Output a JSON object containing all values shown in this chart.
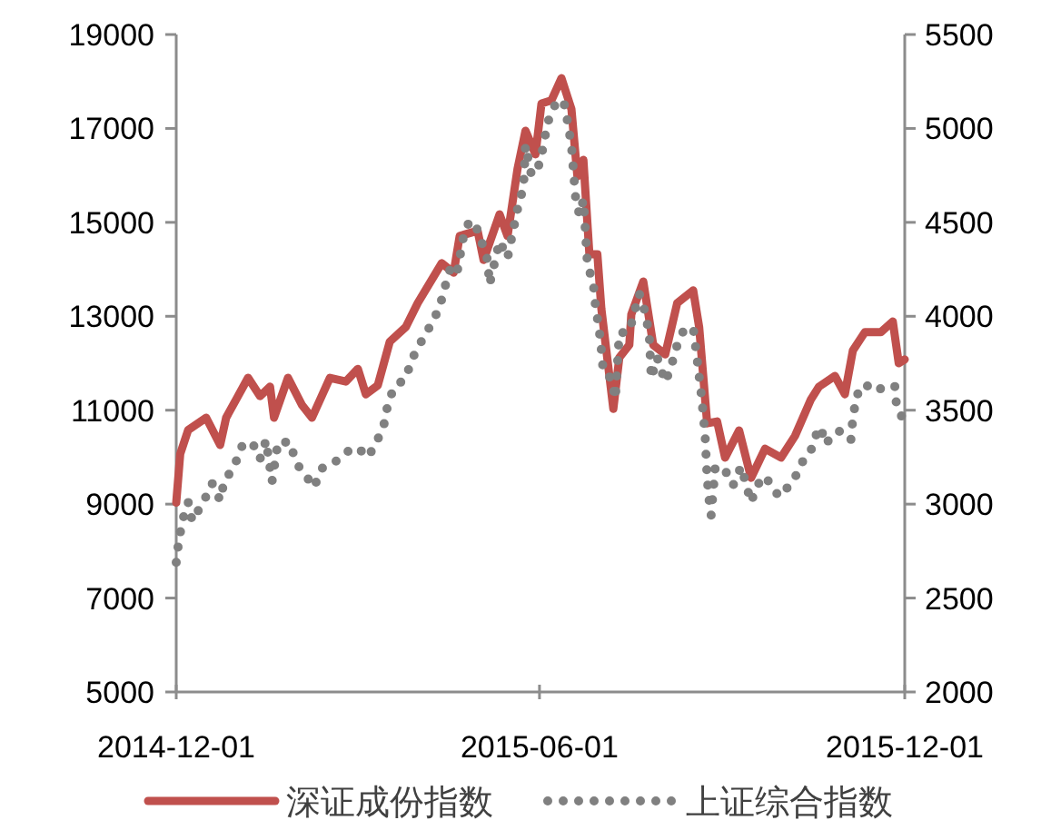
{
  "chart_data": {
    "type": "line",
    "xlim": [
      "2014-12-01",
      "2015-12-01"
    ],
    "xticks": [
      "2014-12-01",
      "2015-06-01",
      "2015-12-01"
    ],
    "ylim": [
      5000,
      19000
    ],
    "yticks": [
      5000,
      7000,
      9000,
      11000,
      13000,
      15000,
      17000,
      19000
    ],
    "y2lim": [
      2000,
      5500
    ],
    "y2ticks": [
      2000,
      2500,
      3000,
      3500,
      4000,
      4500,
      5000,
      5500
    ],
    "legend": "bottom",
    "grid": false,
    "series": [
      {
        "name": "深证成份指数",
        "color": "#c0504d",
        "line_style": "solid",
        "x": [
          "2014-12-01",
          "2014-12-03",
          "2014-12-07",
          "2014-12-16",
          "2014-12-23",
          "2014-12-26",
          "2015-01-06",
          "2015-01-12",
          "2015-01-17",
          "2015-01-19",
          "2015-01-26",
          "2015-02-02",
          "2015-02-07",
          "2015-02-16",
          "2015-02-24",
          "2015-03-02",
          "2015-03-06",
          "2015-03-12",
          "2015-03-18",
          "2015-03-26",
          "2015-04-01",
          "2015-04-13",
          "2015-04-19",
          "2015-04-22",
          "2015-05-01",
          "2015-05-04",
          "2015-05-12",
          "2015-05-16",
          "2015-05-21",
          "2015-05-25",
          "2015-05-30",
          "2015-06-02",
          "2015-06-07",
          "2015-06-12",
          "2015-06-17",
          "2015-06-20",
          "2015-06-23",
          "2015-06-26",
          "2015-06-30",
          "2015-07-02",
          "2015-07-08",
          "2015-07-11",
          "2015-07-16",
          "2015-07-17",
          "2015-07-23",
          "2015-07-28",
          "2015-08-03",
          "2015-08-09",
          "2015-08-17",
          "2015-08-20",
          "2015-08-24",
          "2015-08-29",
          "2015-09-02",
          "2015-09-09",
          "2015-09-15",
          "2015-09-22",
          "2015-09-30",
          "2015-10-07",
          "2015-10-15",
          "2015-10-19",
          "2015-10-27",
          "2015-11-01",
          "2015-11-05",
          "2015-11-11",
          "2015-11-19",
          "2015-11-25",
          "2015-11-28",
          "2015-12-01"
        ],
        "values": [
          9030,
          10070,
          10580,
          10840,
          10260,
          10840,
          11690,
          11300,
          11500,
          10840,
          11690,
          11110,
          10840,
          11690,
          11610,
          11880,
          11340,
          11530,
          12460,
          12770,
          13280,
          14130,
          13930,
          14710,
          14820,
          14200,
          15170,
          14710,
          16140,
          16950,
          16450,
          17530,
          17600,
          18070,
          17410,
          15980,
          16330,
          14320,
          14320,
          13160,
          11030,
          12120,
          12390,
          13040,
          13740,
          12390,
          12190,
          13280,
          13550,
          12770,
          10720,
          10760,
          9990,
          10570,
          9560,
          10180,
          9990,
          10450,
          11230,
          11500,
          11730,
          11340,
          12270,
          12660,
          12660,
          12890,
          12000,
          12080
        ]
      },
      {
        "name": "上证综合指数",
        "color": "#808080",
        "line_style": "dotted",
        "axis": "y2",
        "x": [
          "2014-12-01",
          "2014-12-02",
          "2014-12-04",
          "2014-12-07",
          "2014-12-09",
          "2014-12-15",
          "2014-12-19",
          "2014-12-23",
          "2014-12-25",
          "2014-12-30",
          "2015-01-03",
          "2015-01-08",
          "2015-01-12",
          "2015-01-15",
          "2015-01-18",
          "2015-01-21",
          "2015-01-27",
          "2015-01-30",
          "2015-02-04",
          "2015-02-08",
          "2015-02-12",
          "2015-02-21",
          "2015-02-26",
          "2015-03-02",
          "2015-03-07",
          "2015-03-11",
          "2015-03-15",
          "2015-03-17",
          "2015-03-20",
          "2015-03-26",
          "2015-03-29",
          "2015-04-05",
          "2015-04-08",
          "2015-04-12",
          "2015-04-15",
          "2015-04-18",
          "2015-04-21",
          "2015-04-24",
          "2015-04-27",
          "2015-05-01",
          "2015-05-06",
          "2015-05-07",
          "2015-05-12",
          "2015-05-16",
          "2015-05-21",
          "2015-05-24",
          "2015-05-25",
          "2015-05-28",
          "2015-06-01",
          "2015-06-03",
          "2015-06-05",
          "2015-06-09",
          "2015-06-13",
          "2015-06-15",
          "2015-06-17",
          "2015-06-19",
          "2015-06-21",
          "2015-06-23",
          "2015-06-25",
          "2015-06-28",
          "2015-06-29",
          "2015-07-01",
          "2015-07-02",
          "2015-07-03",
          "2015-07-07",
          "2015-07-09",
          "2015-07-11",
          "2015-07-16",
          "2015-07-21",
          "2015-07-24",
          "2015-07-26",
          "2015-07-27",
          "2015-07-30",
          "2015-08-03",
          "2015-08-06",
          "2015-08-08",
          "2015-08-12",
          "2015-08-17",
          "2015-08-19",
          "2015-08-21",
          "2015-08-22",
          "2015-08-23",
          "2015-08-24",
          "2015-08-25",
          "2015-08-26",
          "2015-08-28",
          "2015-09-01",
          "2015-09-06",
          "2015-09-10",
          "2015-09-15",
          "2015-09-18",
          "2015-09-22",
          "2015-09-25",
          "2015-09-29",
          "2015-10-06",
          "2015-10-11",
          "2015-10-15",
          "2015-10-16",
          "2015-10-20",
          "2015-10-22",
          "2015-10-29",
          "2015-11-04",
          "2015-11-05",
          "2015-11-07",
          "2015-11-11",
          "2015-11-16",
          "2015-11-20",
          "2015-11-26",
          "2015-11-27",
          "2015-12-01"
        ],
        "values": [
          2690,
          2780,
          2910,
          3010,
          2910,
          3020,
          3110,
          3020,
          3120,
          3200,
          3310,
          3330,
          3240,
          3340,
          3120,
          3330,
          3330,
          3220,
          3150,
          3090,
          3190,
          3240,
          3290,
          3300,
          3250,
          3320,
          3420,
          3530,
          3620,
          3670,
          3770,
          3910,
          3960,
          4050,
          4170,
          4280,
          4250,
          4430,
          4510,
          4460,
          4300,
          4170,
          4400,
          4310,
          4570,
          4690,
          4910,
          4750,
          4810,
          4910,
          5030,
          5130,
          5150,
          5040,
          4910,
          4640,
          4540,
          4620,
          4280,
          4170,
          4060,
          3920,
          3820,
          3700,
          3670,
          3560,
          3910,
          3920,
          4120,
          4020,
          3900,
          3670,
          3780,
          3650,
          3730,
          3820,
          3920,
          3940,
          3770,
          3590,
          3480,
          3360,
          3140,
          3020,
          2940,
          3190,
          3200,
          3100,
          3200,
          3010,
          3100,
          3150,
          3100,
          3040,
          3120,
          3230,
          3280,
          3340,
          3410,
          3320,
          3390,
          3340,
          3460,
          3580,
          3640,
          3600,
          3620,
          3630,
          3510,
          3440
        ]
      }
    ]
  }
}
